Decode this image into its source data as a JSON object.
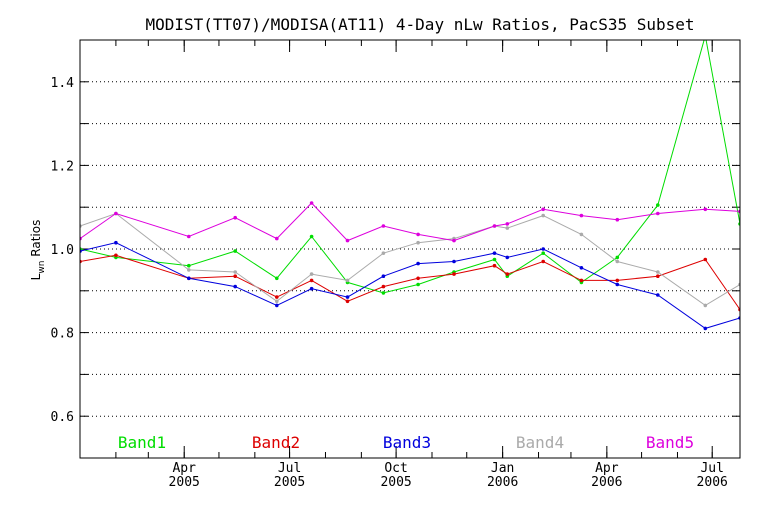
{
  "chart_data": {
    "type": "line",
    "title": "MODIST(TT07)/MODISA(AT11) 4-Day nLw Ratios, PacS35 Subset",
    "ylabel_main": "L",
    "ylabel_sub": "wn",
    "ylabel_rest": " Ratios",
    "ylim": [
      0.5,
      1.5
    ],
    "xlim": [
      "2005-01-01",
      "2006-07-25"
    ],
    "yticks": [
      "0.6",
      "0.8",
      "1.0",
      "1.2",
      "1.4"
    ],
    "ytick_values": [
      0.6,
      0.8,
      1.0,
      1.2,
      1.4
    ],
    "xticks": [
      {
        "date": "2005-04-01",
        "month": "Apr",
        "year": "2005"
      },
      {
        "date": "2005-07-01",
        "month": "Jul",
        "year": "2005"
      },
      {
        "date": "2005-10-01",
        "month": "Oct",
        "year": "2005"
      },
      {
        "date": "2006-01-01",
        "month": "Jan",
        "year": "2006"
      },
      {
        "date": "2006-04-01",
        "month": "Apr",
        "year": "2006"
      },
      {
        "date": "2006-07-01",
        "month": "Jul",
        "year": "2006"
      }
    ],
    "grid": "horizontal dotted",
    "legend_placement": "bottom",
    "series": [
      {
        "name": "Band1",
        "color": "#00dd00",
        "x": [
          "2005-01-01",
          "2005-02-01",
          "2005-04-05",
          "2005-05-15",
          "2005-06-20",
          "2005-07-20",
          "2005-08-20",
          "2005-09-20",
          "2005-10-20",
          "2005-11-20",
          "2005-12-25",
          "2006-01-05",
          "2006-02-05",
          "2006-03-10",
          "2006-04-10",
          "2006-05-15",
          "2006-06-25",
          "2006-07-25"
        ],
        "values": [
          1.0,
          0.98,
          0.96,
          0.995,
          0.93,
          1.03,
          0.92,
          0.895,
          0.915,
          0.945,
          0.975,
          0.935,
          0.99,
          0.92,
          0.98,
          1.105,
          1.51,
          1.06
        ]
      },
      {
        "name": "Band2",
        "color": "#dd0000",
        "x": [
          "2005-01-01",
          "2005-02-01",
          "2005-04-05",
          "2005-05-15",
          "2005-06-20",
          "2005-07-20",
          "2005-08-20",
          "2005-09-20",
          "2005-10-20",
          "2005-11-20",
          "2005-12-25",
          "2006-01-05",
          "2006-02-05",
          "2006-03-10",
          "2006-04-10",
          "2006-05-15",
          "2006-06-25",
          "2006-07-25"
        ],
        "values": [
          0.97,
          0.985,
          0.93,
          0.935,
          0.885,
          0.925,
          0.875,
          0.91,
          0.93,
          0.94,
          0.96,
          0.94,
          0.97,
          0.925,
          0.925,
          0.935,
          0.975,
          0.855
        ]
      },
      {
        "name": "Band3",
        "color": "#0000dd",
        "x": [
          "2005-01-01",
          "2005-02-01",
          "2005-04-05",
          "2005-05-15",
          "2005-06-20",
          "2005-07-20",
          "2005-08-20",
          "2005-09-20",
          "2005-10-20",
          "2005-11-20",
          "2005-12-25",
          "2006-01-05",
          "2006-02-05",
          "2006-03-10",
          "2006-04-10",
          "2006-05-15",
          "2006-06-25",
          "2006-07-25"
        ],
        "values": [
          0.995,
          1.015,
          0.93,
          0.91,
          0.865,
          0.905,
          0.885,
          0.935,
          0.965,
          0.97,
          0.99,
          0.98,
          1.0,
          0.955,
          0.915,
          0.89,
          0.81,
          0.835
        ]
      },
      {
        "name": "Band4",
        "color": "#aaaaaa",
        "x": [
          "2005-01-01",
          "2005-02-01",
          "2005-04-05",
          "2005-05-15",
          "2005-06-20",
          "2005-07-20",
          "2005-08-20",
          "2005-09-20",
          "2005-10-20",
          "2005-11-20",
          "2005-12-25",
          "2006-01-05",
          "2006-02-05",
          "2006-03-10",
          "2006-04-10",
          "2006-05-15",
          "2006-06-25",
          "2006-07-25"
        ],
        "values": [
          1.055,
          1.085,
          0.95,
          0.945,
          0.875,
          0.94,
          0.925,
          0.99,
          1.015,
          1.025,
          1.055,
          1.05,
          1.08,
          1.035,
          0.97,
          0.945,
          0.865,
          0.915
        ]
      },
      {
        "name": "Band5",
        "color": "#dd00dd",
        "x": [
          "2005-01-01",
          "2005-02-01",
          "2005-04-05",
          "2005-05-15",
          "2005-06-20",
          "2005-07-20",
          "2005-08-20",
          "2005-09-20",
          "2005-10-20",
          "2005-11-20",
          "2005-12-25",
          "2006-01-05",
          "2006-02-05",
          "2006-03-10",
          "2006-04-10",
          "2006-05-15",
          "2006-06-25",
          "2006-07-25"
        ],
        "values": [
          1.025,
          1.085,
          1.03,
          1.075,
          1.025,
          1.11,
          1.02,
          1.055,
          1.035,
          1.02,
          1.055,
          1.06,
          1.095,
          1.08,
          1.07,
          1.085,
          1.095,
          1.09
        ]
      }
    ]
  }
}
